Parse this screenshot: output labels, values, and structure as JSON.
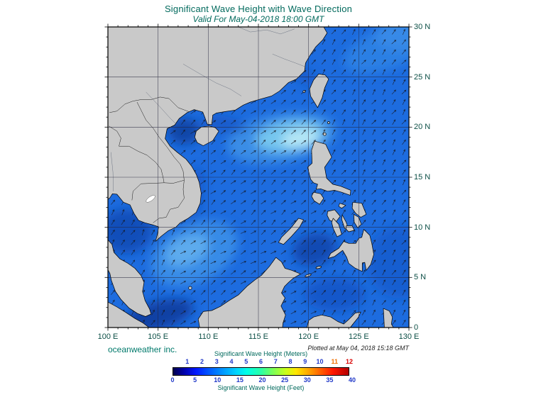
{
  "header": {
    "title": "Significant Wave Height with Wave Direction",
    "subtitle": "Valid For May-04-2018 18:00 GMT"
  },
  "footer": {
    "credit": "oceanweather inc.",
    "plotted_note": "Plotted at May 04, 2018 15:18 GMT"
  },
  "axes": {
    "x_tick_labels": [
      "100 E",
      "105 E",
      "110 E",
      "115 E",
      "120 E",
      "125 E",
      "130 E"
    ],
    "y_tick_labels": [
      "30 N",
      "25 N",
      "20 N",
      "15 N",
      "10 N",
      "5 N",
      "0"
    ],
    "lon_range": [
      100,
      130
    ],
    "lat_range": [
      0,
      30
    ],
    "grid_interval_deg": 5,
    "tick_interval_deg": 1
  },
  "colorbar": {
    "meters_title": "Significant Wave Height (Meters)",
    "feet_title": "Significant Wave Height (Feet)",
    "meters_max": 12,
    "meters_ticks": [
      {
        "label": "1",
        "color": "#2038c8"
      },
      {
        "label": "2",
        "color": "#2038c8"
      },
      {
        "label": "3",
        "color": "#2038c8"
      },
      {
        "label": "4",
        "color": "#2038c8"
      },
      {
        "label": "5",
        "color": "#2038c8"
      },
      {
        "label": "6",
        "color": "#2038c8"
      },
      {
        "label": "7",
        "color": "#2038c8"
      },
      {
        "label": "8",
        "color": "#2038c8"
      },
      {
        "label": "9",
        "color": "#2038c8"
      },
      {
        "label": "10",
        "color": "#2038c8"
      },
      {
        "label": "11",
        "color": "#f07000"
      },
      {
        "label": "12",
        "color": "#d80000"
      }
    ],
    "feet_ticks": [
      "0",
      "5",
      "10",
      "15",
      "20",
      "25",
      "30",
      "35",
      "40"
    ],
    "gradient_stops": [
      [
        0,
        "#00004f"
      ],
      [
        0.06,
        "#0000a8"
      ],
      [
        0.13,
        "#0018ff"
      ],
      [
        0.2,
        "#0055ff"
      ],
      [
        0.28,
        "#0095ff"
      ],
      [
        0.36,
        "#00d4ff"
      ],
      [
        0.42,
        "#00ffe8"
      ],
      [
        0.5,
        "#2bffa8"
      ],
      [
        0.57,
        "#7dff57"
      ],
      [
        0.64,
        "#c8ff1e"
      ],
      [
        0.7,
        "#ffe800"
      ],
      [
        0.77,
        "#ffa800"
      ],
      [
        0.84,
        "#ff6000"
      ],
      [
        0.91,
        "#ff1800"
      ],
      [
        1,
        "#b40000"
      ]
    ]
  },
  "map": {
    "land_color": "#c9c9c9",
    "coast_color": "#000000",
    "ocean_base_color": "#1d6cdf",
    "grid_color": "#26263e",
    "arrow_color": "#14141c",
    "border_color": "#1a1a1a",
    "river_color": "#4a5568",
    "lake_color": "#ffffff"
  },
  "text_colors": {
    "title": "#00695c",
    "axis": "#0c4f46",
    "credit": "#00796b",
    "plotted": "#222222",
    "scale_numbers": "#2038c8",
    "scale_caption": "#00695c"
  },
  "wave_height_patches": [
    {
      "name": "pacific-ne-band",
      "lon": 127.8,
      "lat": 27.8,
      "rx": 4.5,
      "ry": 2.0,
      "rot": -20,
      "color": "#2f82e4",
      "op": 0.9
    },
    {
      "name": "pacific-ne-corner",
      "lon": 129.6,
      "lat": 29.2,
      "rx": 3.0,
      "ry": 1.6,
      "rot": 0,
      "color": "#3b8ce8",
      "op": 0.85
    },
    {
      "name": "north-scs-halo",
      "lon": 117.3,
      "lat": 18.9,
      "rx": 5.5,
      "ry": 2.4,
      "rot": -10,
      "color": "#3f93e8",
      "op": 0.85
    },
    {
      "name": "north-scs-mid",
      "lon": 118.2,
      "lat": 19.1,
      "rx": 3.5,
      "ry": 1.5,
      "rot": -8,
      "color": "#7ccdf0",
      "op": 0.9
    },
    {
      "name": "north-scs-core",
      "lon": 119.2,
      "lat": 18.9,
      "rx": 1.9,
      "ry": 0.85,
      "rot": -8,
      "color": "#bdeaf6",
      "op": 0.9
    },
    {
      "name": "sw-scs-moderate",
      "lon": 108.6,
      "lat": 7.4,
      "rx": 4.6,
      "ry": 2.9,
      "rot": -25,
      "color": "#3b8fe8",
      "op": 0.9
    },
    {
      "name": "sw-scs-core",
      "lon": 107.9,
      "lat": 7.7,
      "rx": 2.3,
      "ry": 1.4,
      "rot": -25,
      "color": "#64b2ee",
      "op": 0.85
    },
    {
      "name": "gulf-tonkin-low",
      "lon": 107.6,
      "lat": 19.6,
      "rx": 1.6,
      "ry": 1.3,
      "rot": 0,
      "color": "#0a3f9e",
      "op": 0.85
    },
    {
      "name": "gulf-thailand-low",
      "lon": 101.8,
      "lat": 9.6,
      "rx": 2.6,
      "ry": 2.2,
      "rot": 0,
      "color": "#0e47b0",
      "op": 0.8
    },
    {
      "name": "java-sea-low",
      "lon": 105.0,
      "lat": 1.2,
      "rx": 3.6,
      "ry": 1.4,
      "rot": -15,
      "color": "#09389a",
      "op": 0.85
    },
    {
      "name": "sulu-sea-low",
      "lon": 120.6,
      "lat": 7.8,
      "rx": 2.2,
      "ry": 1.6,
      "rot": -15,
      "color": "#0c41a8",
      "op": 0.8
    },
    {
      "name": "celebes-sea-low",
      "lon": 122.6,
      "lat": 3.3,
      "rx": 3.0,
      "ry": 1.7,
      "rot": 0,
      "color": "#1150c0",
      "op": 0.7
    },
    {
      "name": "east-mindanao",
      "lon": 129.2,
      "lat": 6.5,
      "rx": 3.4,
      "ry": 3.6,
      "rot": 0,
      "color": "#1356c6",
      "op": 0.6
    },
    {
      "name": "taiwan-strait-coast",
      "lon": 119.3,
      "lat": 25.3,
      "rx": 2.2,
      "ry": 0.7,
      "rot": 35,
      "color": "#1150bb",
      "op": 0.5
    },
    {
      "name": "vietnam-coastal",
      "lon": 108.6,
      "lat": 13.2,
      "rx": 0.8,
      "ry": 2.8,
      "rot": 8,
      "color": "#0d47b5",
      "op": 0.5
    },
    {
      "name": "hainan-south-coast",
      "lon": 111.5,
      "lat": 20.3,
      "rx": 2.3,
      "ry": 0.8,
      "rot": 10,
      "color": "#0f4cb8",
      "op": 0.5
    }
  ],
  "wave_field": {
    "spacing_deg": 1,
    "regions": [
      {
        "name": "pacific",
        "lon": [
          121.5,
          130.5
        ],
        "lat": [
          -0.5,
          30.5
        ],
        "dir_deg": 55
      },
      {
        "name": "gulf-of-thailand",
        "lon": [
          99.5,
          107.5
        ],
        "lat": [
          -0.5,
          14
        ],
        "dir_deg": 60
      },
      {
        "name": "south-scs",
        "lon": [
          107.5,
          121.5
        ],
        "lat": [
          -0.5,
          10
        ],
        "dir_deg": 35
      },
      {
        "name": "north-scs",
        "lon": [
          99.5,
          121.5
        ],
        "lat": [
          10,
          30.5
        ],
        "dir_deg": 42
      }
    ],
    "default_dir_deg": 45
  }
}
